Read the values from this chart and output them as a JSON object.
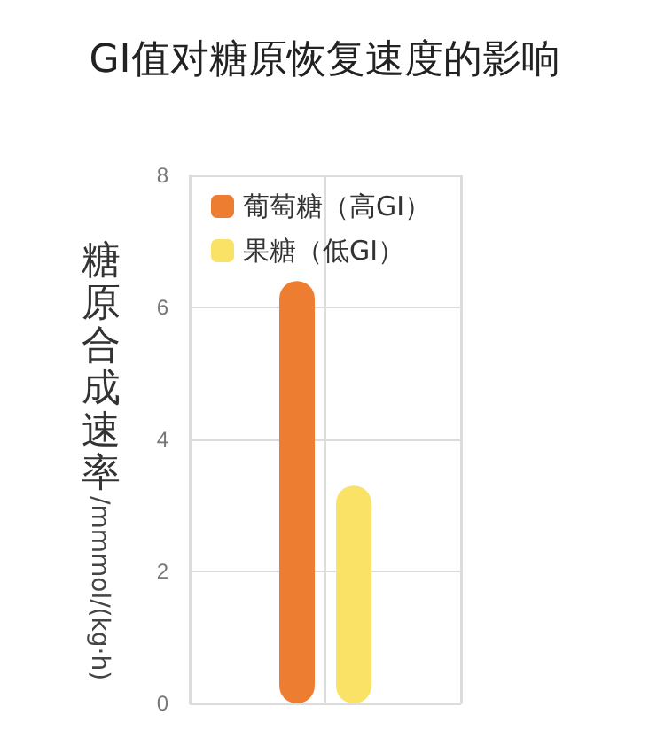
{
  "chart_data": {
    "type": "bar",
    "title": "GI值对糖原恢复速度的影响",
    "ylabel": "糖原合成速率/mmmol/(kg·h)",
    "categories": [
      null
    ],
    "series": [
      {
        "name": "葡萄糖（高GI）",
        "color": "#ed7d31",
        "values": [
          6.4
        ]
      },
      {
        "name": "果糖（低GI）",
        "color": "#f9e266",
        "values": [
          3.3
        ]
      }
    ],
    "ylim": [
      0,
      8
    ],
    "yticks": [
      0,
      2,
      4,
      6,
      8
    ],
    "grid": true,
    "legend": "top left"
  }
}
